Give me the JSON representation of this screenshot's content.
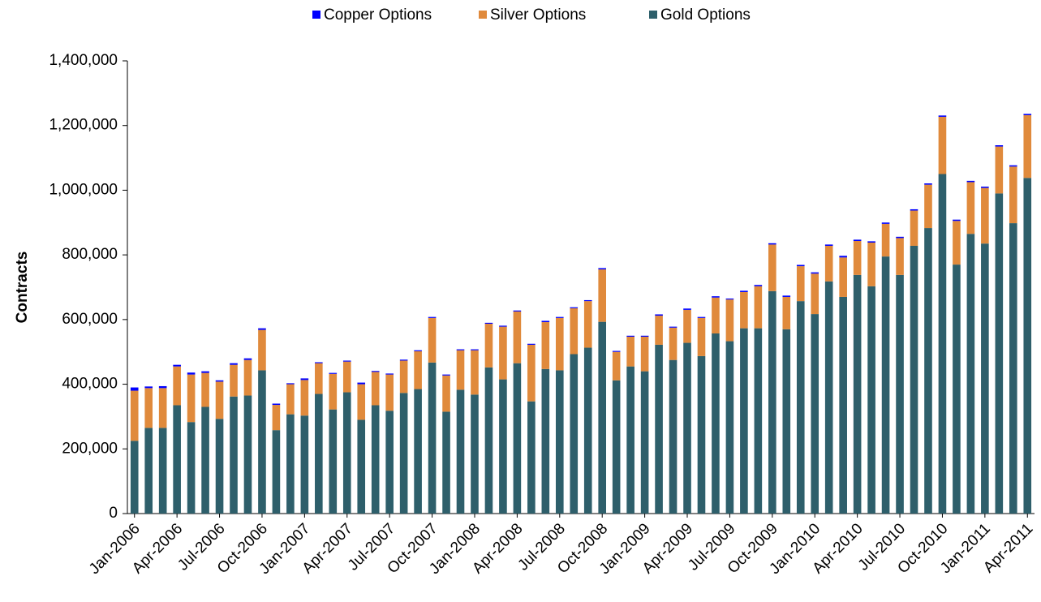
{
  "chart_data": {
    "type": "stacked_bar",
    "ylabel": "Contracts",
    "categories": [
      "Jan-2006",
      null,
      null,
      "Apr-2006",
      null,
      null,
      "Jul-2006",
      null,
      null,
      "Oct-2006",
      null,
      null,
      "Jan-2007",
      null,
      null,
      "Apr-2007",
      null,
      null,
      "Jul-2007",
      null,
      null,
      "Oct-2007",
      null,
      null,
      "Jan-2008",
      null,
      null,
      "Apr-2008",
      null,
      null,
      "Jul-2008",
      null,
      null,
      "Oct-2008",
      null,
      null,
      "Jan-2009",
      null,
      null,
      "Apr-2009",
      null,
      null,
      "Jul-2009",
      null,
      null,
      "Oct-2009",
      null,
      null,
      "Jan-2010",
      null,
      null,
      "Apr-2010",
      null,
      null,
      "Jul-2010",
      null,
      null,
      "Oct-2010",
      null,
      null,
      "Jan-2011",
      null,
      null,
      "Apr-2011"
    ],
    "series": [
      {
        "name": "Gold Options",
        "color": "#2e5f6b",
        "values": [
          225000,
          265000,
          265000,
          335000,
          283000,
          330000,
          293000,
          362000,
          365000,
          443000,
          258000,
          307000,
          303000,
          370000,
          322000,
          375000,
          290000,
          335000,
          318000,
          373000,
          385000,
          467000,
          315000,
          383000,
          368000,
          452000,
          415000,
          465000,
          347000,
          447000,
          443000,
          493000,
          513000,
          593000,
          412000,
          455000,
          440000,
          522000,
          475000,
          528000,
          487000,
          557000,
          533000,
          573000,
          573000,
          688000,
          570000,
          657000,
          617000,
          718000,
          670000,
          738000,
          703000,
          795000,
          738000,
          828000,
          883000,
          1050000,
          770000,
          865000,
          835000,
          990000,
          898000,
          1038000
        ]
      },
      {
        "name": "Silver Options",
        "color": "#e08a3c",
        "values": [
          155000,
          123000,
          123000,
          120000,
          147000,
          105000,
          115000,
          98000,
          110000,
          125000,
          78000,
          93000,
          110000,
          95000,
          110000,
          95000,
          110000,
          103000,
          112000,
          100000,
          117000,
          138000,
          112000,
          122000,
          137000,
          135000,
          163000,
          160000,
          175000,
          145000,
          162000,
          142000,
          144000,
          162000,
          88000,
          92000,
          107000,
          90000,
          100000,
          102000,
          118000,
          111000,
          129000,
          112000,
          130000,
          144000,
          100000,
          108000,
          125000,
          110000,
          122000,
          105000,
          135000,
          101000,
          114000,
          109000,
          134000,
          177000,
          135000,
          160000,
          172000,
          145000,
          175000,
          194000
        ]
      },
      {
        "name": "Copper Options",
        "color": "#0000ff",
        "values": [
          10000,
          5000,
          6000,
          5000,
          6000,
          5000,
          4000,
          5000,
          5000,
          5000,
          4000,
          3000,
          5000,
          3000,
          3000,
          3000,
          5000,
          3000,
          3000,
          3000,
          3000,
          3000,
          3000,
          3000,
          3000,
          3000,
          3000,
          3000,
          3000,
          4000,
          3000,
          3000,
          3000,
          4000,
          3000,
          3000,
          3000,
          4000,
          3000,
          4000,
          3000,
          4000,
          3000,
          4000,
          4000,
          4000,
          4000,
          4000,
          4000,
          4000,
          5000,
          4000,
          4000,
          4000,
          4000,
          4000,
          4000,
          4000,
          4000,
          4000,
          4000,
          4000,
          4000,
          4000
        ]
      }
    ],
    "ylim": [
      0,
      1400000
    ],
    "yticks": [
      0,
      {
        "value": 200000,
        "label": "200,000"
      },
      {
        "value": 400000,
        "label": "400,000"
      },
      {
        "value": 600000,
        "label": "600,000"
      },
      {
        "value": 800000,
        "label": "800,000"
      },
      {
        "value": 1000000,
        "label": "1,000,000"
      },
      {
        "value": 1200000,
        "label": "1,200,000"
      },
      {
        "value": 1400000,
        "label": "1,400,000"
      }
    ],
    "legend_order": [
      "Copper Options",
      "Silver Options",
      "Gold Options"
    ],
    "legend": "top",
    "grid": false
  }
}
